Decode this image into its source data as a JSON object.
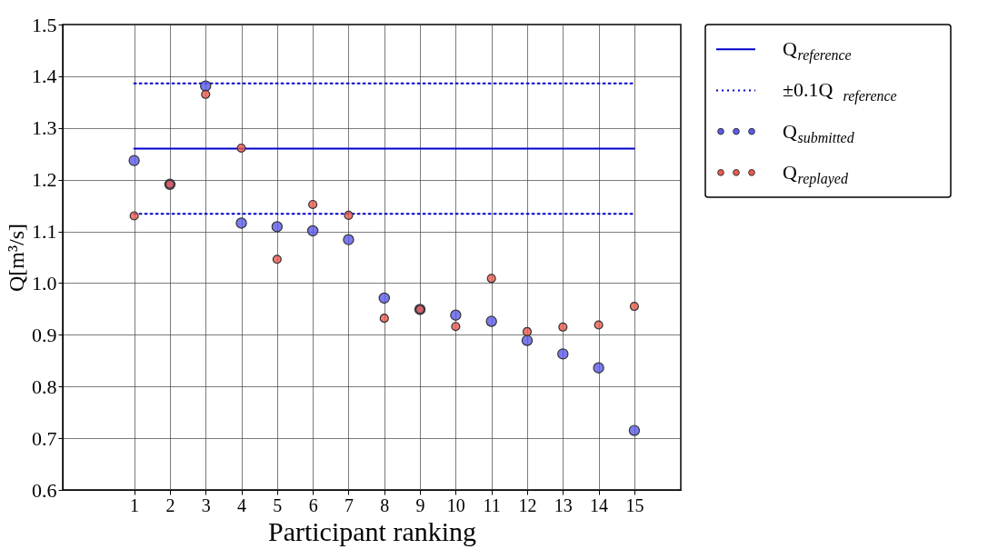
{
  "chart_data": {
    "type": "scatter",
    "xlabel": "Participant ranking",
    "ylabel": "Q[m³/s]",
    "xlim": [
      -1,
      16.3
    ],
    "ylim": [
      0.6,
      1.5
    ],
    "xticks": [
      1,
      2,
      3,
      4,
      5,
      6,
      7,
      8,
      9,
      10,
      11,
      12,
      13,
      14,
      15
    ],
    "yticks": [
      0.6,
      0.7,
      0.8,
      0.9,
      {
        "value": 1,
        "label": "1.0"
      },
      1.1,
      1.2,
      1.3,
      1.4,
      1.5
    ],
    "grid": true,
    "legend": "right",
    "marker": "circle",
    "series": [
      {
        "type": "line",
        "name": "Q$_{reference}$",
        "color": "#0000cc",
        "line_style": "solid",
        "marker": "none",
        "x": [
          1,
          15
        ],
        "values": [
          1.26,
          1.26
        ]
      },
      {
        "type": "line",
        "name": "±0.1Q$_{reference}$",
        "color": "#0000cc",
        "line_style": "dotted",
        "marker": "none",
        "x": [
          1,
          15
        ],
        "values": [
          1.386,
          1.386
        ]
      },
      {
        "type": "line",
        "color": "#0000cc",
        "line_style": "dotted",
        "marker": "none",
        "x": [
          1,
          15
        ],
        "values": [
          1.134,
          1.134
        ]
      },
      {
        "name": "Q$_{submitted}$",
        "color": "#5a5aea",
        "x": [
          1,
          2,
          3,
          4,
          5,
          6,
          7,
          8,
          9,
          10,
          11,
          12,
          13,
          14,
          15
        ],
        "values": [
          1.237,
          1.191,
          1.381,
          1.116,
          1.109,
          1.101,
          1.084,
          0.971,
          0.949,
          0.938,
          0.926,
          0.889,
          0.863,
          0.836,
          0.715
        ]
      },
      {
        "name": "Q$_{replayed}$",
        "color": "#ec5a4e",
        "x": [
          1,
          2,
          3,
          4,
          5,
          6,
          7,
          8,
          9,
          10,
          11,
          12,
          13,
          14,
          15
        ],
        "values": [
          1.13,
          1.191,
          1.365,
          1.261,
          1.046,
          1.152,
          1.131,
          0.932,
          0.949,
          0.916,
          1.009,
          0.906,
          0.915,
          0.919,
          0.955
        ]
      }
    ]
  }
}
